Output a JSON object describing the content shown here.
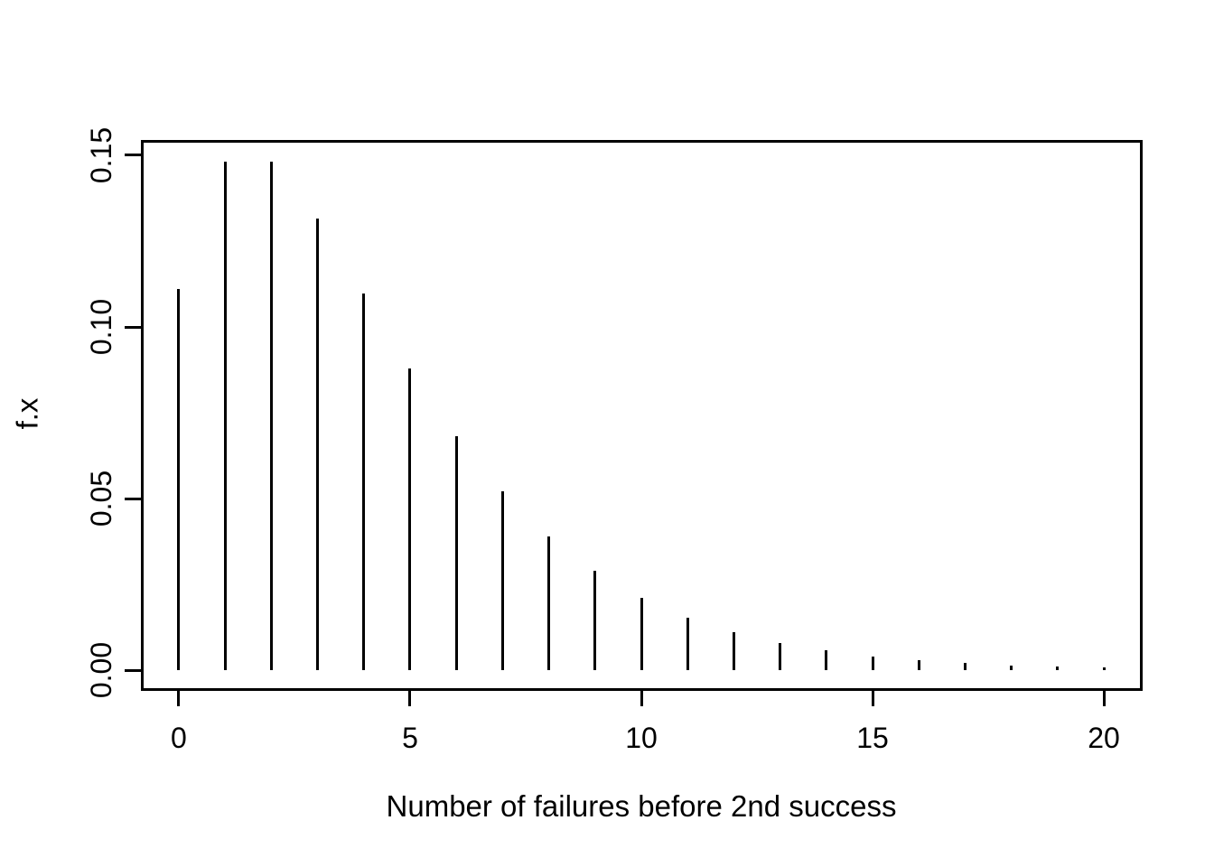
{
  "chart_data": {
    "type": "bar",
    "subtype": "vertical-spike-pmf",
    "title": "",
    "xlabel": "Number of failures before 2nd success",
    "ylabel": "f.x",
    "x": [
      0,
      1,
      2,
      3,
      4,
      5,
      6,
      7,
      8,
      9,
      10,
      11,
      12,
      13,
      14,
      15,
      16,
      17,
      18,
      19,
      20
    ],
    "values": [
      0.11111,
      0.14815,
      0.14815,
      0.13169,
      0.10974,
      0.08779,
      0.06828,
      0.05203,
      0.03902,
      0.02892,
      0.0212,
      0.01541,
      0.01113,
      0.00799,
      0.00571,
      0.00406,
      0.00288,
      0.00203,
      0.00143,
      0.001,
      0.0007
    ],
    "xticks": [
      0,
      5,
      10,
      15,
      20
    ],
    "xtick_labels": [
      "0",
      "5",
      "10",
      "15",
      "20"
    ],
    "yticks": [
      0.0,
      0.05,
      0.1,
      0.15
    ],
    "ytick_labels": [
      "0.00",
      "0.05",
      "0.10",
      "0.15"
    ],
    "xlim": [
      -0.8,
      20.8
    ],
    "ylim": [
      -0.0055,
      0.1542
    ],
    "grid": false,
    "legend": null,
    "line_color": "#000000",
    "axis_color": "#000000",
    "background_color": "#ffffff"
  }
}
